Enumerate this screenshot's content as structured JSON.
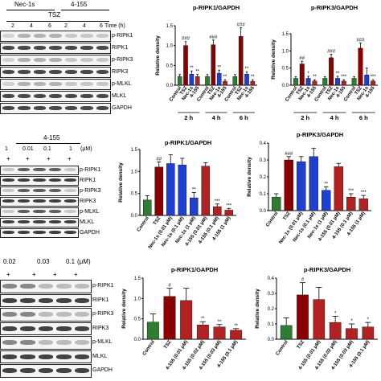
{
  "panel_a": {
    "header_groups": [
      "Nec-1s",
      "4-155"
    ],
    "treatment": "TSZ",
    "times": [
      "2",
      "4",
      "6",
      "2",
      "4",
      "6"
    ],
    "time_unit": "Time (h)",
    "blot_labels": [
      "p-RIPK1",
      "RIPK1",
      "p-RIPK3",
      "RIPK3",
      "p-MLKL",
      "MLKL",
      "GAPDH"
    ]
  },
  "panel_b": {
    "dose_header": "4-155",
    "doses": [
      "1",
      "0.01",
      "0.1",
      "1"
    ],
    "dose_unit": "(μM)",
    "plus_signs": [
      "+",
      "+",
      "+",
      "+"
    ],
    "blot_labels": [
      "p-RIPK1",
      "RIPK1",
      "p-RIPK3",
      "RIPK3",
      "p-MLKL",
      "MLKL",
      "GAPDH"
    ]
  },
  "panel_c": {
    "doses": [
      "0.02",
      "0.03",
      "0.1"
    ],
    "dose_unit": "(μM)",
    "plus_signs": [
      "+",
      "+",
      "+",
      "+"
    ],
    "blot_labels": [
      "p-RIPK1",
      "RIPK1",
      "p-RIPK3",
      "RIPK3",
      "p-MLKL",
      "MLKL",
      "GAPDH"
    ]
  },
  "colors": {
    "control": "#2e7d32",
    "tsz": "#8b0000",
    "nec": "#1e3fd0",
    "c155": "#b22222",
    "c155_light": "#c43a3a"
  },
  "chart_data": [
    {
      "id": "ripk1-time",
      "type": "bar",
      "title": "p-RIPK1/GAPDH",
      "ylabel": "Relative density",
      "ylim": [
        0,
        1.5
      ],
      "yticks": [
        "0.0",
        "0.5",
        "1.0",
        "1.5"
      ],
      "categories": [
        "Control",
        "TSZ",
        "Nec-1s",
        "4-155",
        "Control",
        "TSZ",
        "Nec-1s",
        "4-155",
        "Control",
        "TSZ",
        "Nec-1s",
        "4-155"
      ],
      "groups": [
        "2 h",
        "4 h",
        "6 h"
      ],
      "values": [
        0.22,
        1.0,
        0.28,
        0.22,
        0.22,
        1.02,
        0.3,
        0.1,
        0.22,
        1.23,
        0.28,
        0.1
      ],
      "errors": [
        0.05,
        0.1,
        0.08,
        0.05,
        0.05,
        0.12,
        0.08,
        0.04,
        0.05,
        0.22,
        0.06,
        0.04
      ],
      "colors": [
        "control",
        "tsz",
        "nec",
        "c155",
        "control",
        "tsz",
        "nec",
        "c155",
        "control",
        "tsz",
        "nec",
        "c155"
      ],
      "labels": [
        "",
        "###",
        "**",
        "**",
        "",
        "###",
        "**",
        "**",
        "",
        "###",
        "**",
        "**"
      ]
    },
    {
      "id": "ripk3-time",
      "type": "bar",
      "title": "p-RIPK3/GAPDH",
      "ylabel": "Relative density",
      "ylim": [
        0,
        1.5
      ],
      "yticks": [
        "0.0",
        "0.5",
        "1.0",
        "1.5"
      ],
      "categories": [
        "Control",
        "TSZ",
        "Nec-1s",
        "4-155",
        "Control",
        "TSZ",
        "Nec-1s",
        "4-155",
        "Control",
        "TSZ",
        "Nec-1s",
        "4-155"
      ],
      "groups": [
        "2 h",
        "4 h",
        "6 h"
      ],
      "values": [
        0.2,
        0.62,
        0.2,
        0.12,
        0.2,
        0.8,
        0.2,
        0.12,
        0.2,
        1.08,
        0.3,
        0.12
      ],
      "errors": [
        0.05,
        0.08,
        0.06,
        0.04,
        0.05,
        0.1,
        0.06,
        0.04,
        0.05,
        0.15,
        0.2,
        0.04
      ],
      "colors": [
        "control",
        "tsz",
        "nec",
        "c155",
        "control",
        "tsz",
        "nec",
        "c155",
        "control",
        "tsz",
        "nec",
        "c155"
      ],
      "labels": [
        "",
        "##",
        "*",
        "**",
        "",
        "###",
        "**",
        "***",
        "",
        "###",
        "",
        "***"
      ]
    },
    {
      "id": "ripk1-nec",
      "type": "bar",
      "title": "p-RIPK1/GAPDH",
      "ylabel": "Relative density",
      "ylim": [
        0,
        1.5
      ],
      "yticks": [
        "0.0",
        "0.5",
        "1.0",
        "1.5"
      ],
      "categories": [
        "Control",
        "TSZ",
        "Nec-1s (0.01 μM)",
        "Nec-1s (0.1 μM)",
        "Nec-1s (1 μM)",
        "4-155 (0.01 μM)",
        "4-155 (0.1 μM)",
        "4-155 (1 μM)"
      ],
      "values": [
        0.35,
        1.1,
        1.18,
        1.15,
        0.4,
        1.12,
        0.2,
        0.12
      ],
      "errors": [
        0.1,
        0.12,
        0.2,
        0.15,
        0.12,
        0.08,
        0.06,
        0.04
      ],
      "colors": [
        "control",
        "tsz",
        "nec",
        "nec",
        "nec",
        "c155",
        "c155",
        "c155"
      ],
      "labels": [
        "",
        "##",
        "",
        "",
        "**",
        "",
        "***",
        "***"
      ]
    },
    {
      "id": "ripk3-nec",
      "type": "bar",
      "title": "p-RIPK3/GAPDH",
      "ylabel": "Relative density",
      "ylim": [
        0,
        0.4
      ],
      "yticks": [
        "0.0",
        "0.1",
        "0.2",
        "0.3",
        "0.4"
      ],
      "categories": [
        "Control",
        "TSZ",
        "Nec-1s (0.01 μM)",
        "Nec-1s (0.1 μM)",
        "Nec-1s (1 μM)",
        "4-155 (0.01 μM)",
        "4-155 (0.1 μM)",
        "4-155 (1 μM)"
      ],
      "values": [
        0.08,
        0.3,
        0.29,
        0.32,
        0.12,
        0.26,
        0.08,
        0.07
      ],
      "errors": [
        0.02,
        0.02,
        0.03,
        0.05,
        0.02,
        0.02,
        0.02,
        0.02
      ],
      "colors": [
        "control",
        "tsz",
        "nec",
        "nec",
        "nec",
        "c155",
        "c155",
        "c155"
      ],
      "labels": [
        "",
        "###",
        "",
        "",
        "**",
        "",
        "***",
        "***"
      ]
    },
    {
      "id": "ripk1-dose",
      "type": "bar",
      "title": "p-RIPK1/GAPDH",
      "ylabel": "Relative density",
      "ylim": [
        0,
        1.5
      ],
      "yticks": [
        "0.0",
        "0.5",
        "1.0",
        "1.5"
      ],
      "categories": [
        "Control",
        "TSZ",
        "4-155 (0.02 μM)",
        "4-155 (0.03 μM)",
        "4-155 (0.1 μM)"
      ],
      "values": [
        0.42,
        1.05,
        0.95,
        0.35,
        0.3,
        0.22
      ],
      "categories_full": [
        "Control",
        "TSZ",
        "4-155 (0.01 μM)",
        "4-155 (0.02 μM)",
        "4-155 (0.03 μM)",
        "4-155 (0.1 μM)"
      ],
      "errors": [
        0.2,
        0.2,
        0.3,
        0.08,
        0.06,
        0.04
      ],
      "colors": [
        "control",
        "tsz",
        "c155",
        "c155",
        "c155",
        "c155"
      ],
      "labels": [
        "",
        "#",
        "",
        "**",
        "**",
        "**"
      ]
    },
    {
      "id": "ripk3-dose",
      "type": "bar",
      "title": "p-RIPK3/GAPDH",
      "ylabel": "Relative density",
      "ylim": [
        0,
        0.4
      ],
      "yticks": [
        "0.0",
        "0.1",
        "0.2",
        "0.3",
        "0.4"
      ],
      "categories_full": [
        "Control",
        "TSZ",
        "4-155 (0.01 μM)",
        "4-155 (0.02 μM)",
        "4-155 (0.03 μM)",
        "4-155 (0.1 μM)"
      ],
      "values": [
        0.09,
        0.29,
        0.26,
        0.11,
        0.07,
        0.08
      ],
      "errors": [
        0.05,
        0.08,
        0.08,
        0.04,
        0.03,
        0.03
      ],
      "colors": [
        "control",
        "tsz",
        "c155",
        "c155",
        "c155",
        "c155"
      ],
      "labels": [
        "",
        "#",
        "",
        "*",
        "*",
        "*"
      ]
    }
  ]
}
